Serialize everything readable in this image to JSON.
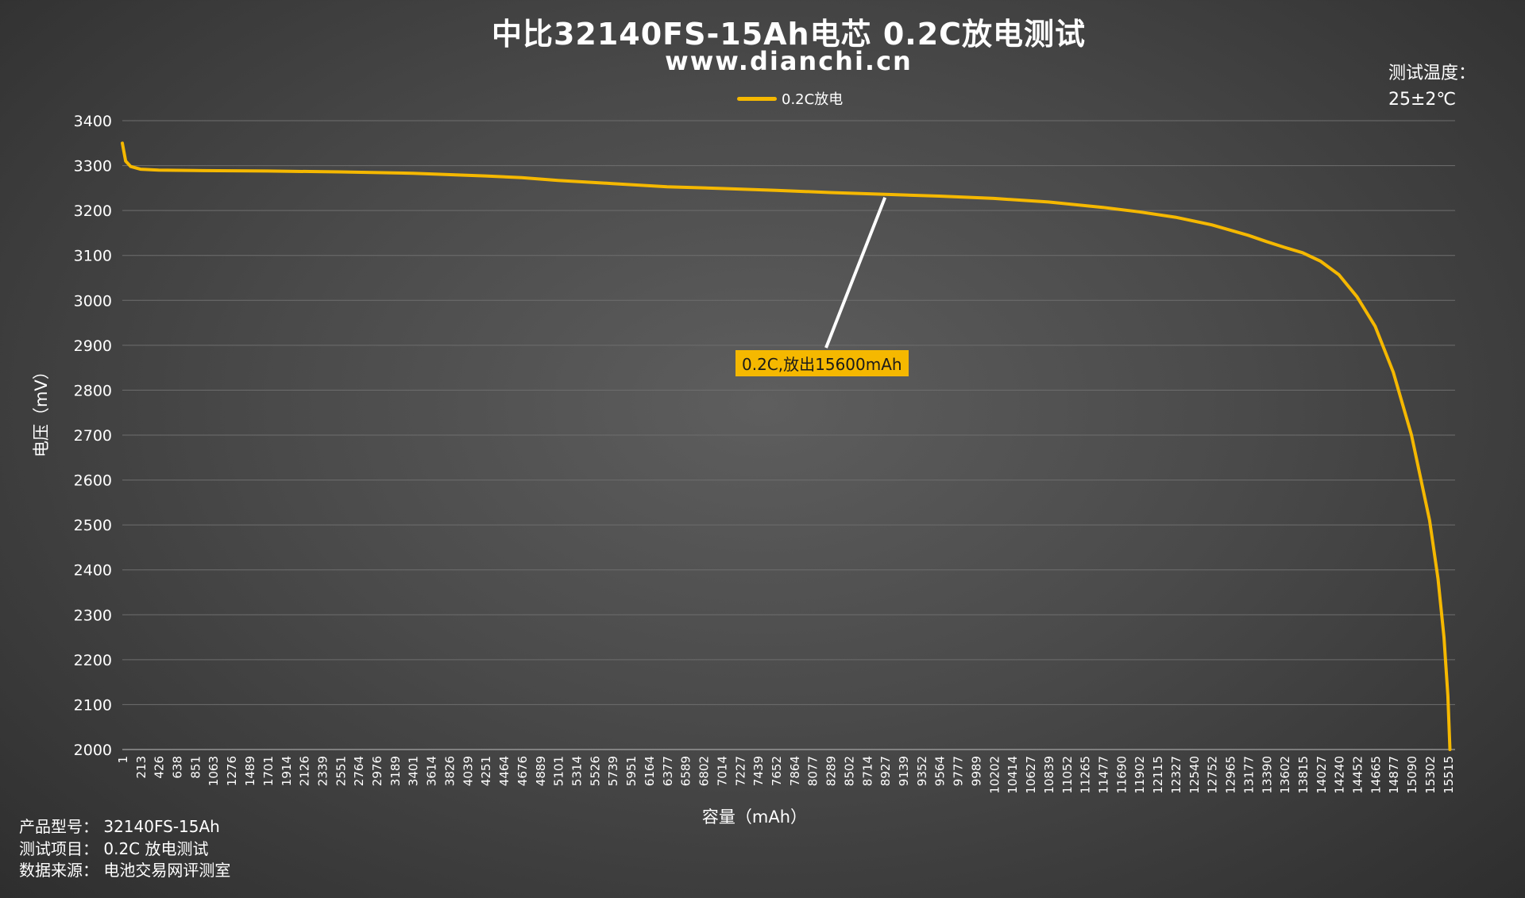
{
  "chart_data": {
    "type": "line",
    "title": "中比32140FS-15Ah电芯 0.2C放电测试",
    "subtitle": "www.dianchi.cn",
    "xlabel": "容量（mAh）",
    "ylabel": "电压（mV）",
    "ylim": [
      2000,
      3400
    ],
    "yticks": [
      2000,
      2100,
      2200,
      2300,
      2400,
      2500,
      2600,
      2700,
      2800,
      2900,
      3000,
      3100,
      3200,
      3300,
      3400
    ],
    "xlim": [
      1,
      15600
    ],
    "xticks": [
      1,
      213,
      426,
      638,
      851,
      1063,
      1276,
      1489,
      1701,
      1914,
      2126,
      2339,
      2551,
      2764,
      2976,
      3189,
      3401,
      3614,
      3826,
      4039,
      4251,
      4464,
      4676,
      4889,
      5101,
      5314,
      5526,
      5739,
      5951,
      6164,
      6377,
      6589,
      6802,
      7014,
      7227,
      7439,
      7652,
      7864,
      8077,
      8289,
      8502,
      8714,
      8927,
      9139,
      9352,
      9564,
      9777,
      9989,
      10202,
      10414,
      10627,
      10839,
      11052,
      11265,
      11477,
      11690,
      11902,
      12115,
      12327,
      12540,
      12752,
      12965,
      13177,
      13390,
      13602,
      13815,
      14027,
      14240,
      14452,
      14665,
      14877,
      15090,
      15302,
      15515
    ],
    "grid": true,
    "legend_position": "top-center",
    "series": [
      {
        "name": "0.2C放电",
        "color": "#f5b800",
        "points": [
          [
            1,
            3350
          ],
          [
            40,
            3310
          ],
          [
            100,
            3298
          ],
          [
            213,
            3292
          ],
          [
            426,
            3290
          ],
          [
            851,
            3289
          ],
          [
            1701,
            3288
          ],
          [
            2551,
            3286
          ],
          [
            3401,
            3283
          ],
          [
            4251,
            3277
          ],
          [
            4676,
            3273
          ],
          [
            5101,
            3267
          ],
          [
            5739,
            3260
          ],
          [
            6377,
            3253
          ],
          [
            7014,
            3249
          ],
          [
            7652,
            3245
          ],
          [
            8289,
            3240
          ],
          [
            8927,
            3236
          ],
          [
            9564,
            3232
          ],
          [
            10202,
            3227
          ],
          [
            10839,
            3219
          ],
          [
            11477,
            3207
          ],
          [
            11902,
            3197
          ],
          [
            12327,
            3185
          ],
          [
            12752,
            3168
          ],
          [
            13177,
            3145
          ],
          [
            13390,
            3131
          ],
          [
            13602,
            3118
          ],
          [
            13815,
            3106
          ],
          [
            14027,
            3087
          ],
          [
            14240,
            3057
          ],
          [
            14452,
            3008
          ],
          [
            14665,
            2942
          ],
          [
            14877,
            2840
          ],
          [
            15090,
            2700
          ],
          [
            15302,
            2510
          ],
          [
            15400,
            2380
          ],
          [
            15470,
            2250
          ],
          [
            15515,
            2120
          ],
          [
            15540,
            2000
          ]
        ]
      }
    ],
    "annotation": {
      "text": "0.2C,放出15600mAh",
      "target_x": 8927,
      "target_y": 3236
    }
  },
  "notes": {
    "temperature_label": "测试温度：",
    "temperature_value": "25±2℃",
    "product": "产品型号：  32140FS-15Ah",
    "test_item": "测试项目：  0.2C 放电测试",
    "source": "数据来源：  电池交易网评测室"
  }
}
